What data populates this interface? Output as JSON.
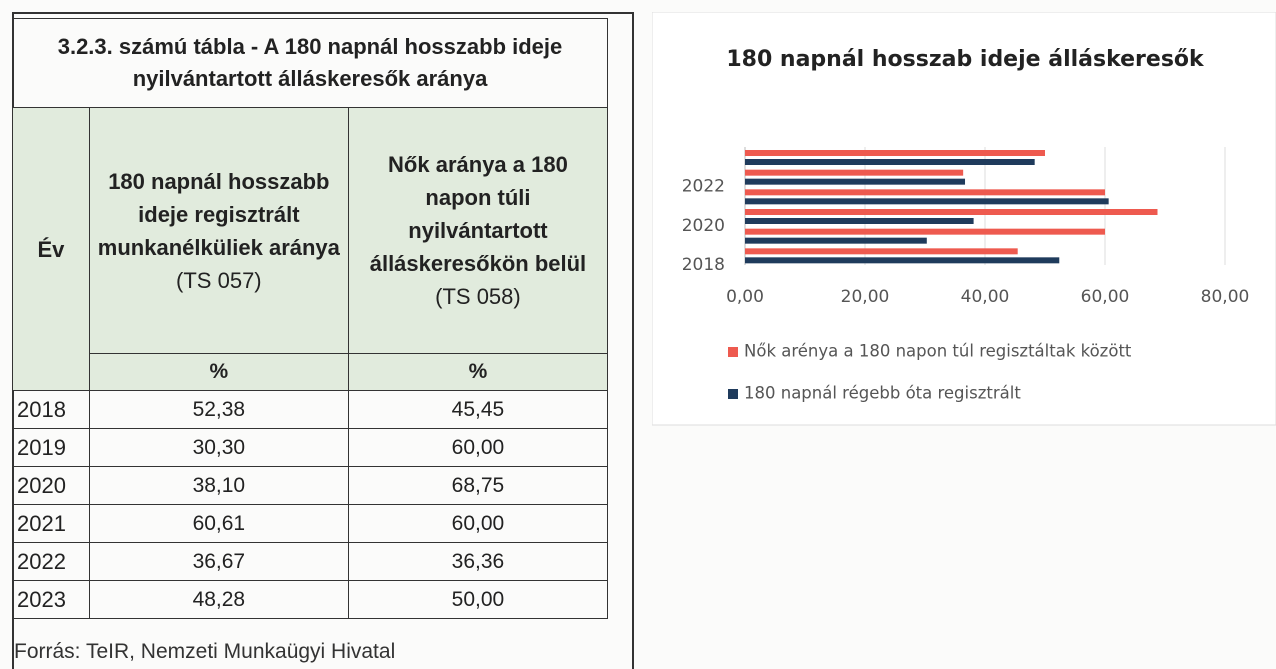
{
  "table": {
    "title": "3.2.3. számú tábla - A 180 napnál hosszabb ideje nyilvántartott álláskeresők aránya",
    "headers": [
      {
        "bold": "Év"
      },
      {
        "bold": "180 napnál hosszabb ideje regisztrált munkanélküliek aránya",
        "normal": "(TS 057)"
      },
      {
        "bold": "Nők aránya a 180 napon túli nyilvántartott álláskeresőkön belül",
        "normal": "(TS 058)"
      }
    ],
    "units": [
      "%",
      "%"
    ],
    "rows": [
      [
        "2018",
        "52,38",
        "45,45"
      ],
      [
        "2019",
        "30,30",
        "60,00"
      ],
      [
        "2020",
        "38,10",
        "68,75"
      ],
      [
        "2021",
        "60,61",
        "60,00"
      ],
      [
        "2022",
        "36,67",
        "36,36"
      ],
      [
        "2023",
        "48,28",
        "50,00"
      ]
    ],
    "source": "Forrás: TeIR, Nemzeti Munkaügyi Hivatal"
  },
  "chart_data": {
    "type": "barh",
    "title": "180 napnál hosszab ideje álláskeresők",
    "categories": [
      "2018",
      null,
      "2020",
      null,
      "2022",
      null
    ],
    "series": [
      {
        "name": "Nők arénya a 180 napon túl regisztáltak között",
        "color": "#ee5a4f",
        "values": [
          45.45,
          60.0,
          68.75,
          60.0,
          36.36,
          50.0
        ]
      },
      {
        "name": "180 napnál régebb óta regisztrált",
        "color": "#1f3b5c",
        "values": [
          52.38,
          30.3,
          38.1,
          60.61,
          36.67,
          48.28
        ]
      }
    ],
    "xlim": [
      0,
      80
    ],
    "xticks": [
      {
        "value": 0,
        "label": "0,00"
      },
      {
        "value": 20,
        "label": "20,00"
      },
      {
        "value": 40,
        "label": "40,00"
      },
      {
        "value": 60,
        "label": "60,00"
      },
      {
        "value": 80,
        "label": "80,00"
      }
    ],
    "grid": true,
    "legend": "bottom"
  }
}
